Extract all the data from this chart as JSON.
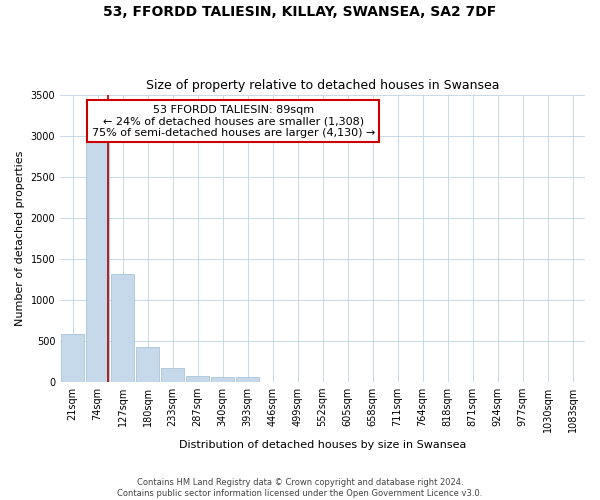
{
  "title": "53, FFORDD TALIESIN, KILLAY, SWANSEA, SA2 7DF",
  "subtitle": "Size of property relative to detached houses in Swansea",
  "xlabel": "Distribution of detached houses by size in Swansea",
  "ylabel": "Number of detached properties",
  "categories": [
    "21sqm",
    "74sqm",
    "127sqm",
    "180sqm",
    "233sqm",
    "287sqm",
    "340sqm",
    "393sqm",
    "446sqm",
    "499sqm",
    "552sqm",
    "605sqm",
    "658sqm",
    "711sqm",
    "764sqm",
    "818sqm",
    "871sqm",
    "924sqm",
    "977sqm",
    "1030sqm",
    "1083sqm"
  ],
  "bar_values": [
    580,
    2920,
    1310,
    420,
    170,
    65,
    50,
    50,
    0,
    0,
    0,
    0,
    0,
    0,
    0,
    0,
    0,
    0,
    0,
    0,
    0
  ],
  "bar_color": "#c5d9ea",
  "bar_edge_color": "#a0bcd4",
  "marker_line_color": "#aa0000",
  "ylim": [
    0,
    3500
  ],
  "yticks": [
    0,
    500,
    1000,
    1500,
    2000,
    2500,
    3000,
    3500
  ],
  "annotation_title": "53 FFORDD TALIESIN: 89sqm",
  "annotation_line1": "← 24% of detached houses are smaller (1,308)",
  "annotation_line2": "75% of semi-detached houses are larger (4,130) →",
  "annotation_box_color": "#ffffff",
  "annotation_box_edge": "#cc0000",
  "footer_line1": "Contains HM Land Registry data © Crown copyright and database right 2024.",
  "footer_line2": "Contains public sector information licensed under the Open Government Licence v3.0.",
  "background_color": "#ffffff",
  "grid_color": "#c8d8e8",
  "title_fontsize": 10,
  "subtitle_fontsize": 9,
  "axis_label_fontsize": 8,
  "tick_fontsize": 7,
  "footer_fontsize": 6,
  "annot_fontsize": 8
}
